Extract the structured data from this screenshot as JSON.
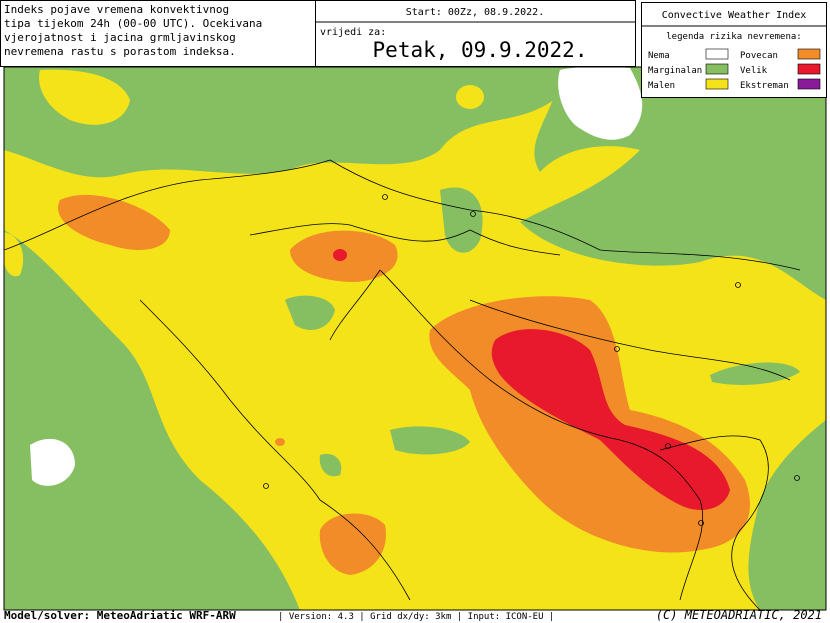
{
  "header": {
    "description": [
      "Indeks pojave vremena konvektivnog",
      "tipa tijekom 24h (00-00 UTC). Ocekivana",
      "vjerojatnost i jacina grmljavinskog",
      "nevremena rastu s porastom indeksa."
    ],
    "start": "Start: 00Zz, 08.9.2022.",
    "valid_label": "vrijedi za:",
    "valid_date": "Petak, 09.9.2022."
  },
  "legend": {
    "title": "Convective Weather Index",
    "subtitle": "legenda rizika nevremena:",
    "items": [
      {
        "label": "Nema",
        "color": "#ffffff"
      },
      {
        "label": "Povecan",
        "color": "#f28c28"
      },
      {
        "label": "Marginalan",
        "color": "#86be62"
      },
      {
        "label": "Velik",
        "color": "#e8192c"
      },
      {
        "label": "Malen",
        "color": "#f5e31a"
      },
      {
        "label": "Ekstreman",
        "color": "#8b1a9b"
      }
    ]
  },
  "footer": {
    "model": "Model/solver: MeteoAdriatic WRF-ARW",
    "info": "| Version: 4.3 | Grid dx/dy: 3km | Input: ICON-EU |",
    "copyright": "(C) METEOADRIATIC, 2021"
  }
}
